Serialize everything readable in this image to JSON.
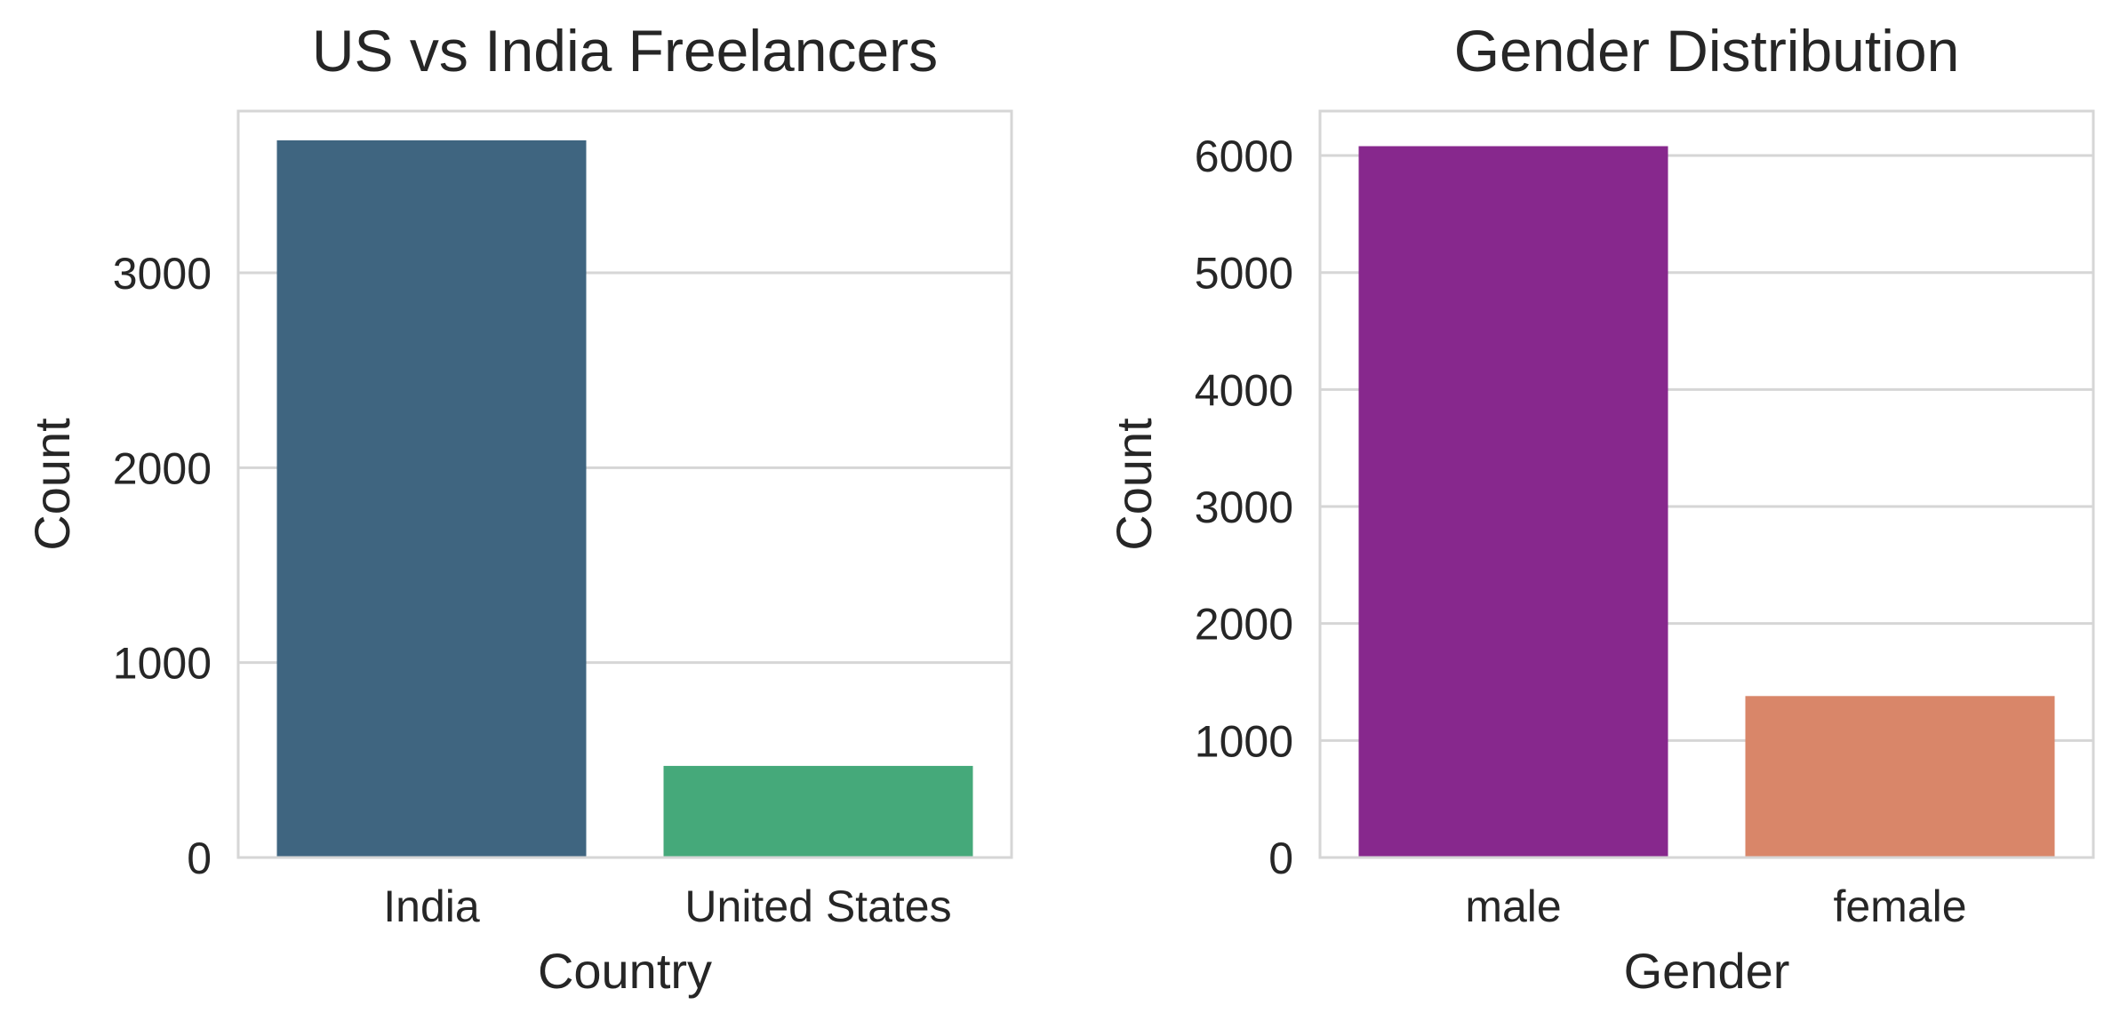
{
  "chart_data": [
    {
      "type": "bar",
      "title": "US vs India Freelancers",
      "xlabel": "Country",
      "ylabel": "Count",
      "categories": [
        "India",
        "United States"
      ],
      "values": [
        3680,
        470
      ],
      "colors": [
        "#3f6580",
        "#45a97a"
      ],
      "ylim": [
        0,
        3830
      ],
      "yticks": [
        0,
        1000,
        2000,
        3000
      ],
      "grid": true
    },
    {
      "type": "bar",
      "title": "Gender Distribution",
      "xlabel": "Gender",
      "ylabel": "Count",
      "categories": [
        "male",
        "female"
      ],
      "values": [
        6080,
        1380
      ],
      "colors": [
        "#87288d",
        "#d98669"
      ],
      "ylim": [
        0,
        6380
      ],
      "yticks": [
        0,
        1000,
        2000,
        3000,
        4000,
        5000,
        6000
      ],
      "grid": true
    }
  ]
}
